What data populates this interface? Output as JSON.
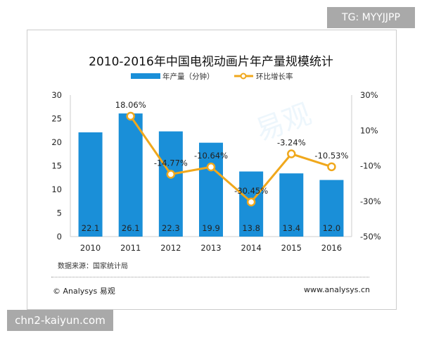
{
  "badges": {
    "top_right": "TG: MYYJJPP",
    "bottom_left": "chn2-kaiyun.com"
  },
  "footer": {
    "source": "数据来源：国家统计局",
    "copyright": "© Analysys 易观",
    "website": "www.analysys.cn"
  },
  "chart_data": {
    "type": "bar+line",
    "title": "2010-2016年中国电视动画片年产量规模统计",
    "categories": [
      "2010",
      "2011",
      "2012",
      "2013",
      "2014",
      "2015",
      "2016"
    ],
    "series": [
      {
        "name": "年产量（分钟）",
        "type": "bar",
        "axis": "left",
        "color": "#1a8fd8",
        "values": [
          22.1,
          26.1,
          22.3,
          19.9,
          13.8,
          13.4,
          12.0
        ],
        "labels": [
          "22.1",
          "26.1",
          "22.3",
          "19.9",
          "13.8",
          "13.4",
          "12.0"
        ]
      },
      {
        "name": "环比增长率",
        "type": "line",
        "axis": "right",
        "color": "#f0a81c",
        "values": [
          null,
          18.06,
          -14.77,
          -10.64,
          -30.45,
          -3.24,
          -10.53
        ],
        "labels": [
          "",
          "18.06%",
          "-14.77%",
          "-10.64%",
          "-30.45%",
          "-3.24%",
          "-10.53%"
        ]
      }
    ],
    "y_left": {
      "ylim": [
        0,
        30
      ],
      "ticks": [
        "0",
        "5",
        "10",
        "15",
        "20",
        "25",
        "30"
      ]
    },
    "y_right": {
      "ylim": [
        -50,
        30
      ],
      "ticks": [
        "-50%",
        "-30%",
        "-10%",
        "10%",
        "30%"
      ]
    },
    "legend": "top-center",
    "grid": false
  }
}
